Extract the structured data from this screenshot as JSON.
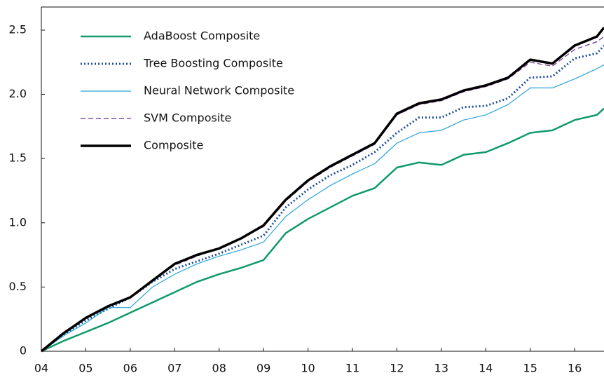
{
  "chart_data": {
    "type": "line",
    "x": [
      2004,
      2004.5,
      2005,
      2005.5,
      2006,
      2006.5,
      2007,
      2007.5,
      2008,
      2008.5,
      2009,
      2009.5,
      2010,
      2010.5,
      2011,
      2011.5,
      2012,
      2012.5,
      2013,
      2013.5,
      2014,
      2014.5,
      2015,
      2015.5,
      2016,
      2016.5,
      2016.66
    ],
    "series": [
      {
        "name": "AdaBoost Composite",
        "color": "#0f9a6a",
        "style": "solid",
        "width": 2.5,
        "values": [
          0,
          0.08,
          0.15,
          0.22,
          0.3,
          0.38,
          0.46,
          0.54,
          0.6,
          0.65,
          0.71,
          0.92,
          1.03,
          1.12,
          1.21,
          1.27,
          1.43,
          1.47,
          1.45,
          1.53,
          1.55,
          1.62,
          1.7,
          1.72,
          1.8,
          1.84,
          1.89
        ]
      },
      {
        "name": "Tree Boosting Composite",
        "color": "#1f4e9a",
        "style": "dotted",
        "width": 3,
        "values": [
          0,
          0.13,
          0.24,
          0.33,
          0.42,
          0.54,
          0.64,
          0.7,
          0.76,
          0.83,
          0.9,
          1.12,
          1.26,
          1.37,
          1.45,
          1.55,
          1.7,
          1.82,
          1.82,
          1.9,
          1.91,
          1.97,
          2.13,
          2.14,
          2.28,
          2.32,
          2.38
        ]
      },
      {
        "name": "Neural Network Composite",
        "color": "#27a4d8",
        "style": "solid",
        "width": 1.2,
        "values": [
          0,
          0.12,
          0.22,
          0.34,
          0.34,
          0.5,
          0.6,
          0.68,
          0.74,
          0.79,
          0.85,
          1.05,
          1.18,
          1.29,
          1.38,
          1.46,
          1.62,
          1.7,
          1.72,
          1.8,
          1.84,
          1.92,
          2.05,
          2.05,
          2.12,
          2.2,
          2.23
        ]
      },
      {
        "name": "SVM Composite",
        "color": "#6a2a8a",
        "style": "dashed",
        "width": 1.2,
        "values": [
          0,
          0.15,
          0.26,
          0.35,
          0.42,
          0.55,
          0.67,
          0.74,
          0.8,
          0.88,
          0.97,
          1.17,
          1.32,
          1.43,
          1.52,
          1.61,
          1.84,
          1.92,
          1.95,
          2.02,
          2.06,
          2.12,
          2.25,
          2.22,
          2.35,
          2.41,
          2.45
        ]
      },
      {
        "name": "Composite",
        "color": "#000000",
        "style": "solid",
        "width": 3.5,
        "values": [
          0,
          0.14,
          0.26,
          0.35,
          0.42,
          0.55,
          0.68,
          0.75,
          0.8,
          0.88,
          0.98,
          1.18,
          1.33,
          1.44,
          1.53,
          1.62,
          1.85,
          1.93,
          1.96,
          2.03,
          2.07,
          2.13,
          2.27,
          2.24,
          2.38,
          2.45,
          2.52
        ]
      }
    ],
    "xlim": [
      2004,
      2016.66
    ],
    "xticks": [
      {
        "value": 2004,
        "label": "04"
      },
      {
        "value": 2005,
        "label": "05"
      },
      {
        "value": 2006,
        "label": "06"
      },
      {
        "value": 2007,
        "label": "07"
      },
      {
        "value": 2008,
        "label": "08"
      },
      {
        "value": 2009,
        "label": "09"
      },
      {
        "value": 2010,
        "label": "10"
      },
      {
        "value": 2011,
        "label": "11"
      },
      {
        "value": 2012,
        "label": "12"
      },
      {
        "value": 2013,
        "label": "13"
      },
      {
        "value": 2014,
        "label": "14"
      },
      {
        "value": 2015,
        "label": "15"
      },
      {
        "value": 2016,
        "label": "16"
      }
    ],
    "ylim": [
      0,
      2.68
    ],
    "yticks": [
      0,
      0.5,
      {
        "value": 1,
        "label": "1.0"
      },
      1.5,
      {
        "value": 2,
        "label": "2.0"
      },
      2.5
    ],
    "grid": false,
    "legend": "top-left"
  }
}
